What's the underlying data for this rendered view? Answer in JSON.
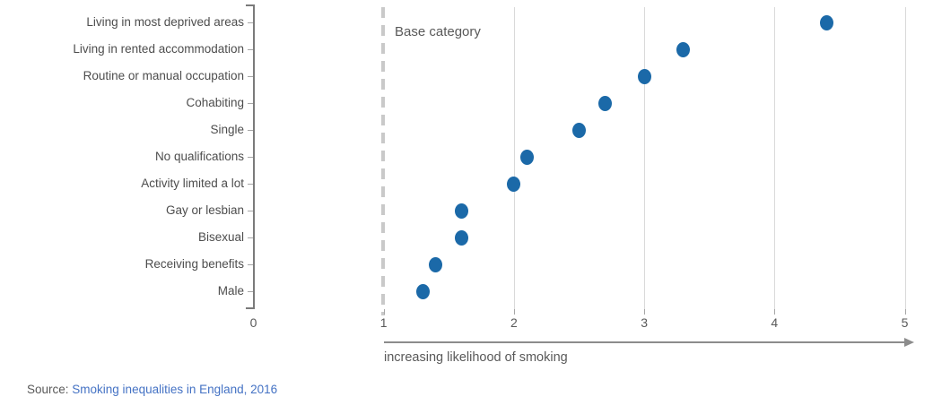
{
  "chart_data": {
    "type": "scatter",
    "subtype": "dot-plot",
    "categories": [
      "Living in most deprived areas",
      "Living in rented accommodation",
      "Routine or manual occupation",
      "Cohabiting",
      "Single",
      "No qualifications",
      "Activity limited a lot",
      "Gay or lesbian",
      "Bisexual",
      "Receiving benefits",
      "Male"
    ],
    "values": [
      4.4,
      3.3,
      3.0,
      2.7,
      2.5,
      2.1,
      2.0,
      1.6,
      1.6,
      1.4,
      1.3
    ],
    "title": "",
    "xlabel": "increasing likelihood of smoking",
    "ylabel": "",
    "xlim": [
      0,
      5
    ],
    "x_ticks": [
      "0",
      "1",
      "2",
      "3",
      "4",
      "5"
    ],
    "gridlines_at": [
      2,
      3,
      4,
      5
    ],
    "grid": "vertical-only",
    "base_category_line_x": 1,
    "annotation": "Base category",
    "legend_position": "none"
  },
  "annotation": {
    "base_category": "Base category"
  },
  "axis": {
    "caption": "increasing likelihood of smoking"
  },
  "source": {
    "prefix": "Source: ",
    "link_text": "Smoking inequalities in England, 2016"
  },
  "colors": {
    "dot": "#1b69a8",
    "grid": "#d9d9d9",
    "dash": "#c9c9c9",
    "axis": "#7a7a7a",
    "tick": "#a6a6a6",
    "text": "#4d4d4d",
    "muted": "#595959",
    "arrow": "#8c8c8c",
    "link": "#4472c4"
  }
}
